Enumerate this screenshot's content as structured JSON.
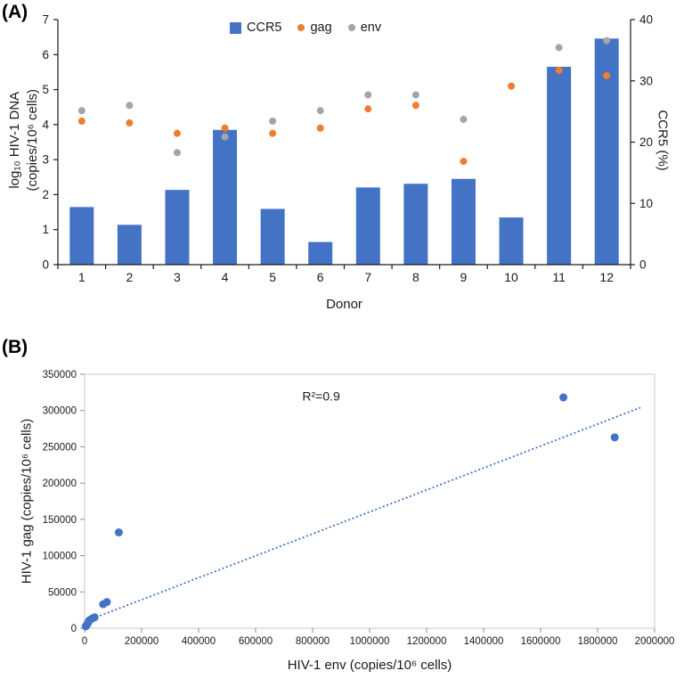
{
  "figure": {
    "panel_a_label": "(A)",
    "panel_b_label": "(B)"
  },
  "chart_data": [
    {
      "id": "panel-A",
      "type": "bar",
      "subtype": "combo-bar-scatter",
      "categories": [
        "1",
        "2",
        "3",
        "4",
        "5",
        "6",
        "7",
        "8",
        "9",
        "10",
        "11",
        "12"
      ],
      "xlabel": "Donor",
      "left_axis": {
        "label": "log₁₀ HIV-1 DNA\n(copies/10⁶ cells)",
        "min": 0,
        "max": 7,
        "step": 1
      },
      "right_axis": {
        "label": "CCR5 (%)",
        "min": 0,
        "max": 40,
        "step": 10
      },
      "grid": false,
      "legend_position": "top-center",
      "series": [
        {
          "name": "CCR5",
          "type": "bar",
          "axis": "right",
          "color": "#4472C4",
          "values": [
            9.4,
            6.5,
            12.2,
            22,
            9.1,
            3.7,
            12.6,
            13.2,
            14,
            7.7,
            32.3,
            36.9
          ]
        },
        {
          "name": "gag",
          "type": "scatter",
          "axis": "left",
          "color": "#ED7D31",
          "values": [
            4.1,
            4.05,
            3.75,
            3.9,
            3.75,
            3.9,
            4.45,
            4.55,
            2.95,
            5.1,
            5.55,
            5.4
          ]
        },
        {
          "name": "env",
          "type": "scatter",
          "axis": "left",
          "color": "#A5A5A5",
          "values": [
            4.4,
            4.55,
            3.2,
            3.65,
            4.1,
            4.4,
            4.85,
            4.85,
            4.15,
            5.1,
            6.2,
            6.4
          ]
        }
      ]
    },
    {
      "id": "panel-B",
      "type": "scatter",
      "xlabel": "HIV-1 env (copies/10⁶ cells)",
      "ylabel": "HIV-1 gag (copies/10⁶ cells)",
      "x_axis": {
        "min": 0,
        "max": 2000000,
        "step": 200000
      },
      "y_axis": {
        "min": 0,
        "max": 350000,
        "step": 50000
      },
      "grid": false,
      "marker_color": "#4472C4",
      "points": [
        [
          4000,
          2500
        ],
        [
          7000,
          4000
        ],
        [
          10000,
          6000
        ],
        [
          13000,
          8500
        ],
        [
          17000,
          11000
        ],
        [
          25000,
          13000
        ],
        [
          35000,
          15000
        ],
        [
          65000,
          33000
        ],
        [
          78000,
          36000
        ],
        [
          120000,
          132000
        ],
        [
          1680000,
          318000
        ],
        [
          1860000,
          263000
        ]
      ],
      "trendline": {
        "x1": 0,
        "y1": 9000,
        "x2": 1950000,
        "y2": 304000,
        "color": "#4472C4",
        "style": "dotted"
      },
      "annotation": {
        "text": "R²=0.9",
        "x": 830000,
        "y": 320000
      }
    }
  ]
}
